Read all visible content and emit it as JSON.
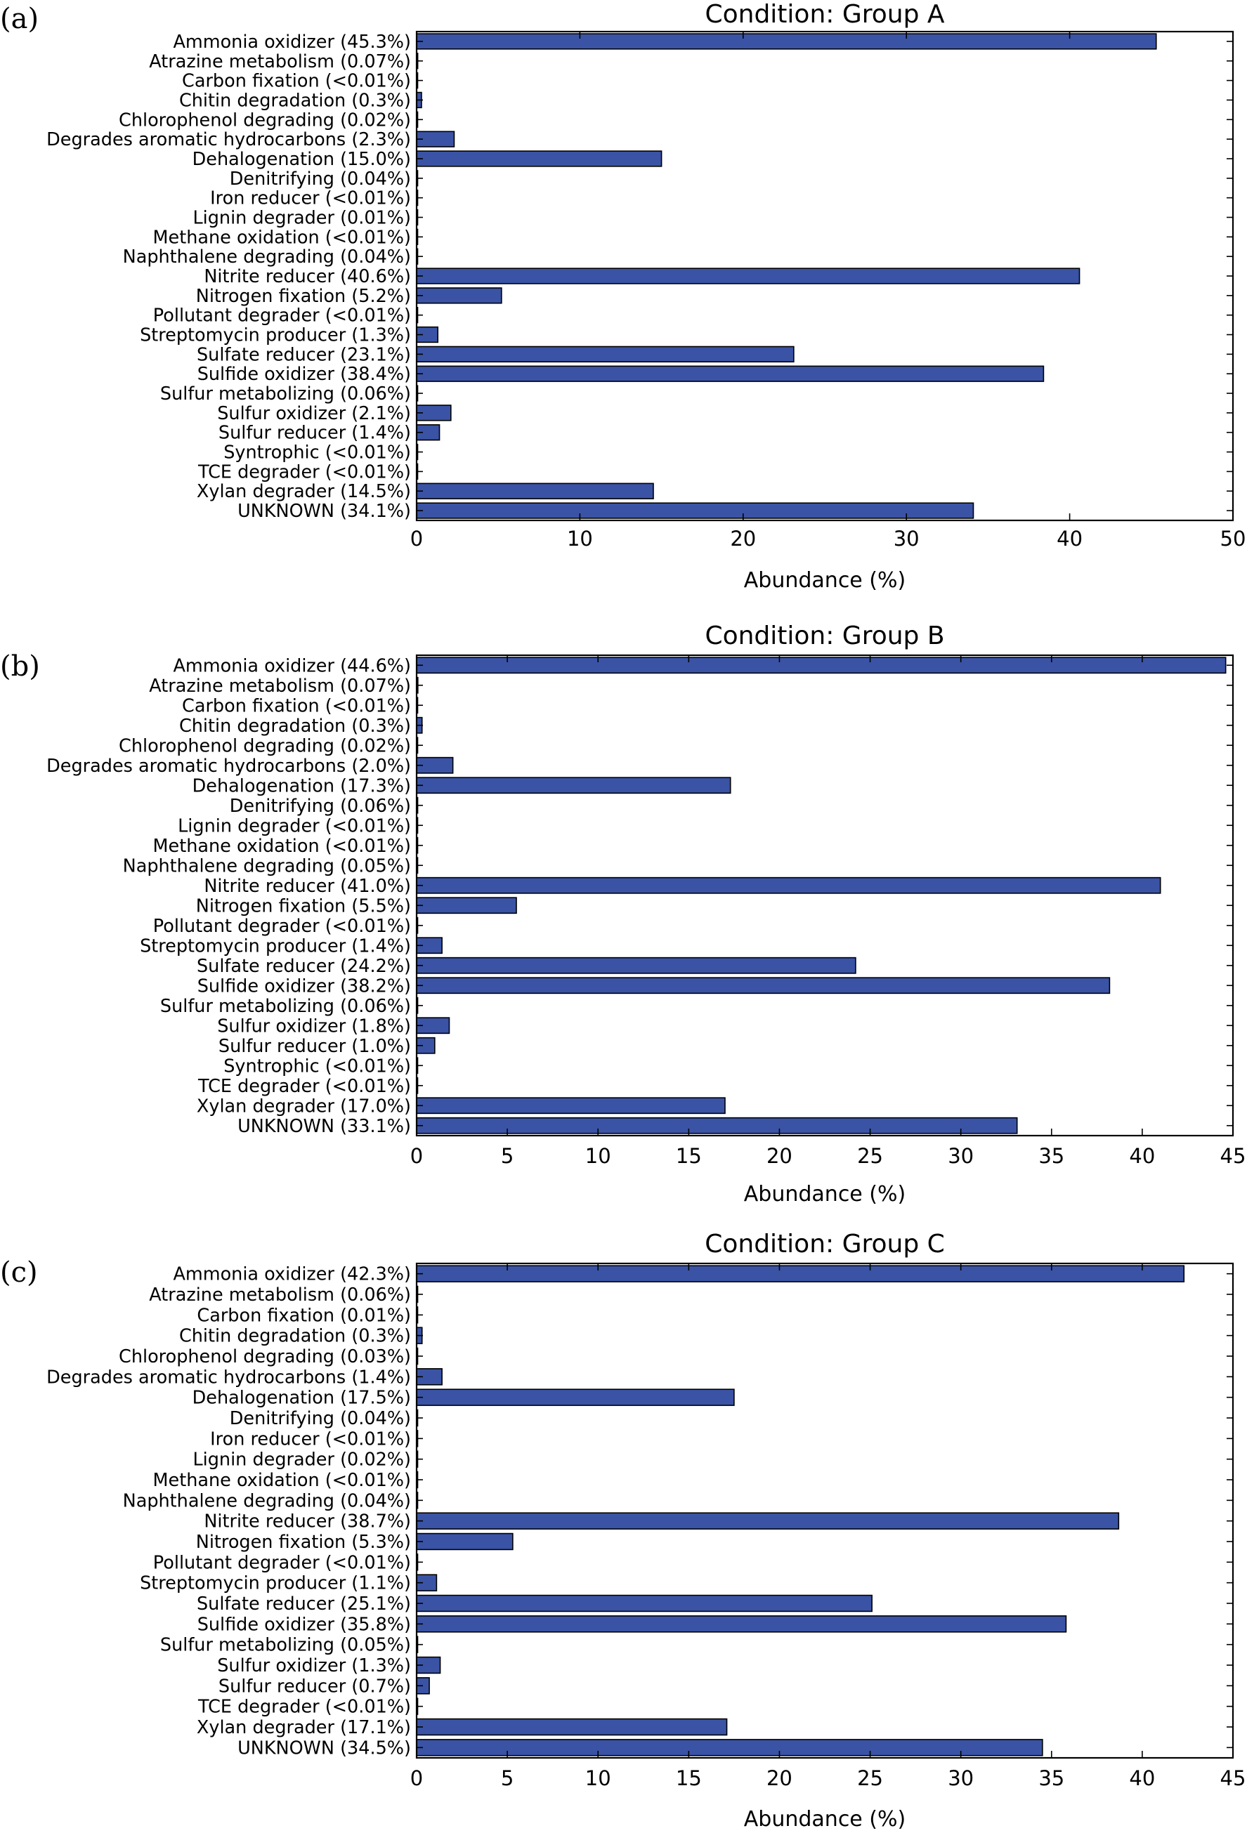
{
  "chart_data": [
    {
      "type": "bar",
      "orientation": "horizontal",
      "panel_label": "(a)",
      "title": "Condition: Group A",
      "xlabel": "Abundance (%)",
      "xlim": [
        0,
        50
      ],
      "xticks": [
        0,
        10,
        20,
        30,
        40,
        50
      ],
      "bar_color": "#3a53a4",
      "categories": [
        "Ammonia oxidizer (45.3%)",
        "Atrazine metabolism (0.07%)",
        "Carbon fixation (<0.01%)",
        "Chitin degradation (0.3%)",
        "Chlorophenol degrading (0.02%)",
        "Degrades aromatic hydrocarbons (2.3%)",
        "Dehalogenation (15.0%)",
        "Denitrifying (0.04%)",
        "Iron reducer (<0.01%)",
        "Lignin degrader (0.01%)",
        "Methane oxidation (<0.01%)",
        "Naphthalene degrading (0.04%)",
        "Nitrite reducer (40.6%)",
        "Nitrogen fixation (5.2%)",
        "Pollutant degrader (<0.01%)",
        "Streptomycin producer (1.3%)",
        "Sulfate reducer (23.1%)",
        "Sulfide oxidizer (38.4%)",
        "Sulfur metabolizing (0.06%)",
        "Sulfur oxidizer (2.1%)",
        "Sulfur reducer (1.4%)",
        "Syntrophic (<0.01%)",
        "TCE degrader (<0.01%)",
        "Xylan degrader (14.5%)",
        "UNKNOWN (34.1%)"
      ],
      "values": [
        45.3,
        0.07,
        0.005,
        0.3,
        0.02,
        2.3,
        15.0,
        0.04,
        0.005,
        0.01,
        0.005,
        0.04,
        40.6,
        5.2,
        0.005,
        1.3,
        23.1,
        38.4,
        0.06,
        2.1,
        1.4,
        0.005,
        0.005,
        14.5,
        34.1
      ]
    },
    {
      "type": "bar",
      "orientation": "horizontal",
      "panel_label": "(b)",
      "title": "Condition: Group B",
      "xlabel": "Abundance (%)",
      "xlim": [
        0,
        45
      ],
      "xticks": [
        0,
        5,
        10,
        15,
        20,
        25,
        30,
        35,
        40,
        45
      ],
      "bar_color": "#3a53a4",
      "categories": [
        "Ammonia oxidizer (44.6%)",
        "Atrazine metabolism (0.07%)",
        "Carbon fixation (<0.01%)",
        "Chitin degradation (0.3%)",
        "Chlorophenol degrading (0.02%)",
        "Degrades aromatic hydrocarbons (2.0%)",
        "Dehalogenation (17.3%)",
        "Denitrifying (0.06%)",
        "Lignin degrader (<0.01%)",
        "Methane oxidation (<0.01%)",
        "Naphthalene degrading (0.05%)",
        "Nitrite reducer (41.0%)",
        "Nitrogen fixation (5.5%)",
        "Pollutant degrader (<0.01%)",
        "Streptomycin producer (1.4%)",
        "Sulfate reducer (24.2%)",
        "Sulfide oxidizer (38.2%)",
        "Sulfur metabolizing (0.06%)",
        "Sulfur oxidizer (1.8%)",
        "Sulfur reducer (1.0%)",
        "Syntrophic (<0.01%)",
        "TCE degrader (<0.01%)",
        "Xylan degrader (17.0%)",
        "UNKNOWN (33.1%)"
      ],
      "values": [
        44.6,
        0.07,
        0.005,
        0.3,
        0.02,
        2.0,
        17.3,
        0.06,
        0.005,
        0.005,
        0.05,
        41.0,
        5.5,
        0.005,
        1.4,
        24.2,
        38.2,
        0.06,
        1.8,
        1.0,
        0.005,
        0.005,
        17.0,
        33.1
      ]
    },
    {
      "type": "bar",
      "orientation": "horizontal",
      "panel_label": "(c)",
      "title": "Condition: Group C",
      "xlabel": "Abundance (%)",
      "xlim": [
        0,
        45
      ],
      "xticks": [
        0,
        5,
        10,
        15,
        20,
        25,
        30,
        35,
        40,
        45
      ],
      "bar_color": "#3a53a4",
      "categories": [
        "Ammonia oxidizer (42.3%)",
        "Atrazine metabolism (0.06%)",
        "Carbon fixation (0.01%)",
        "Chitin degradation (0.3%)",
        "Chlorophenol degrading (0.03%)",
        "Degrades aromatic hydrocarbons (1.4%)",
        "Dehalogenation (17.5%)",
        "Denitrifying (0.04%)",
        "Iron reducer (<0.01%)",
        "Lignin degrader (0.02%)",
        "Methane oxidation (<0.01%)",
        "Naphthalene degrading (0.04%)",
        "Nitrite reducer (38.7%)",
        "Nitrogen fixation (5.3%)",
        "Pollutant degrader (<0.01%)",
        "Streptomycin producer (1.1%)",
        "Sulfate reducer (25.1%)",
        "Sulfide oxidizer (35.8%)",
        "Sulfur metabolizing (0.05%)",
        "Sulfur oxidizer (1.3%)",
        "Sulfur reducer (0.7%)",
        "TCE degrader (<0.01%)",
        "Xylan degrader (17.1%)",
        "UNKNOWN (34.5%)"
      ],
      "values": [
        42.3,
        0.06,
        0.01,
        0.3,
        0.03,
        1.4,
        17.5,
        0.04,
        0.005,
        0.02,
        0.005,
        0.04,
        38.7,
        5.3,
        0.005,
        1.1,
        25.1,
        35.8,
        0.05,
        1.3,
        0.7,
        0.005,
        17.1,
        34.5
      ]
    }
  ]
}
